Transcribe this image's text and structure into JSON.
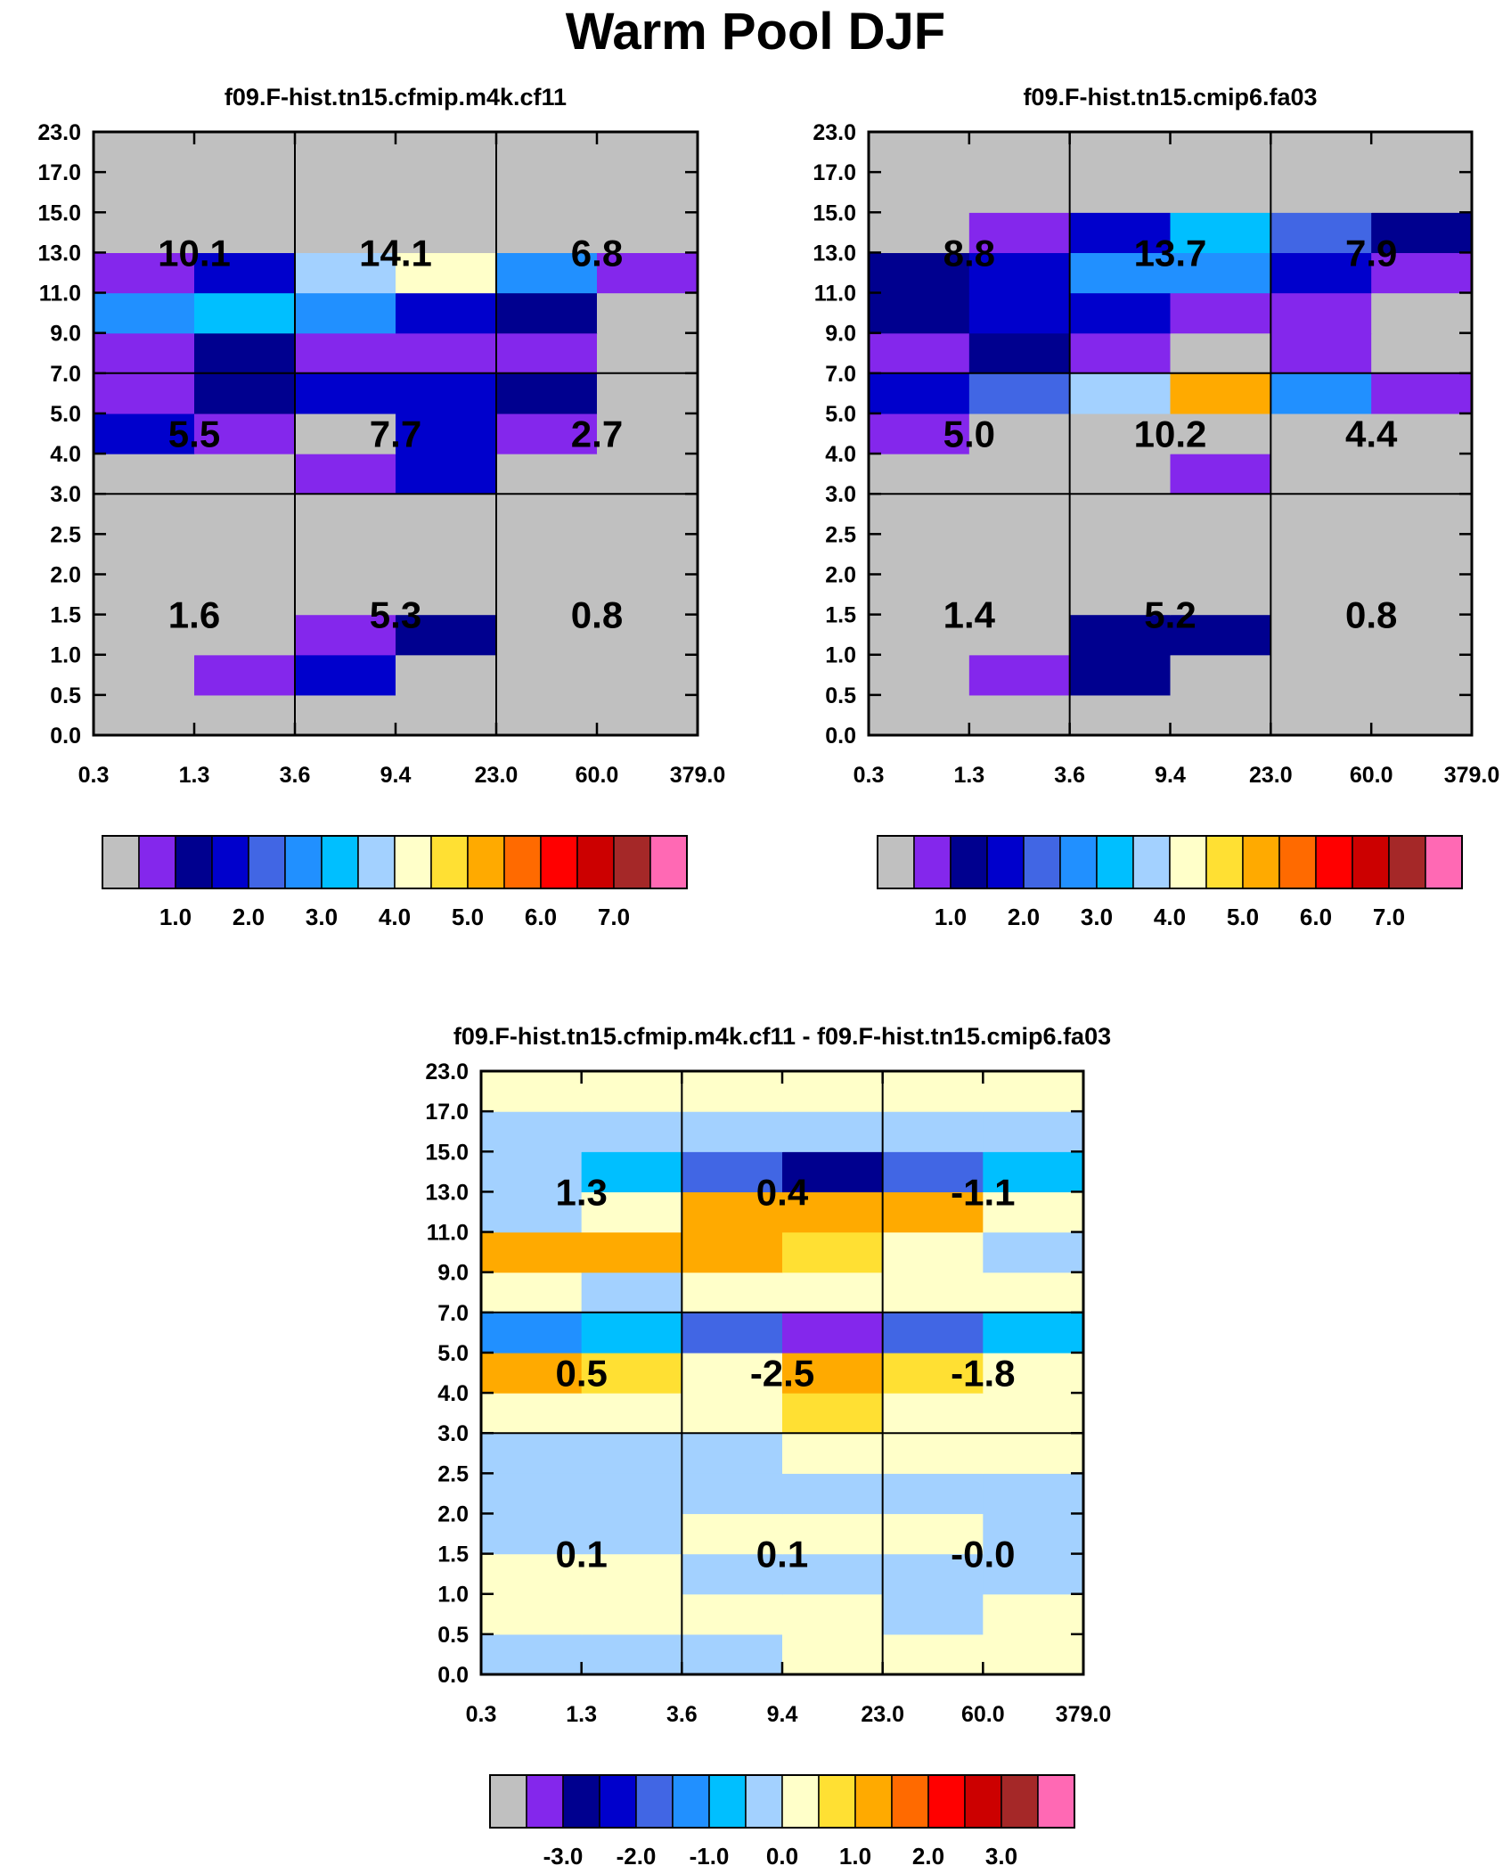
{
  "title": "Warm Pool DJF",
  "colors": {
    "abs": [
      "#c0c0c0",
      "#8427ec",
      "#00008f",
      "#0000cc",
      "#4166e4",
      "#2190ff",
      "#00bfff",
      "#a3d1ff",
      "#ffffc9",
      "#ffe033",
      "#ffaa00",
      "#ff6a00",
      "#ff0000",
      "#cc0000",
      "#a52828",
      "#ff69b4"
    ],
    "diff": [
      "#c0c0c0",
      "#8427ec",
      "#00008f",
      "#0000cc",
      "#4166e4",
      "#2190ff",
      "#00bfff",
      "#a3d1ff",
      "#ffffc9",
      "#ffe033",
      "#ffaa00",
      "#ff6a00",
      "#ff0000",
      "#cc0000",
      "#a52828",
      "#ff69b4"
    ]
  },
  "chart_data": [
    {
      "type": "heatmap",
      "title": "f09.F-hist.tn15.cfmip.m4k.cf11",
      "x_ticks": [
        "0.3",
        "1.3",
        "3.6",
        "9.4",
        "23.0",
        "60.0",
        "379.0"
      ],
      "y_ticks": [
        "0.0",
        "0.5",
        "1.0",
        "1.5",
        "2.0",
        "2.5",
        "3.0",
        "4.0",
        "5.0",
        "7.0",
        "9.0",
        "11.0",
        "13.0",
        "15.0",
        "17.0",
        "23.0"
      ],
      "cells": [
        [
          0,
          0,
          0,
          0,
          0,
          0
        ],
        [
          0,
          1,
          3,
          0,
          0,
          0
        ],
        [
          0,
          0,
          1,
          2,
          0,
          0
        ],
        [
          0,
          0,
          0,
          0,
          0,
          0
        ],
        [
          0,
          0,
          0,
          0,
          0,
          0
        ],
        [
          0,
          0,
          0,
          0,
          0,
          0
        ],
        [
          0,
          0,
          1,
          3,
          0,
          0
        ],
        [
          3,
          1,
          0,
          3,
          1,
          0
        ],
        [
          1,
          2,
          3,
          3,
          2,
          0
        ],
        [
          1,
          2,
          1,
          1,
          1,
          0
        ],
        [
          5,
          6,
          5,
          3,
          2,
          0
        ],
        [
          1,
          3,
          7,
          8,
          5,
          1
        ],
        [
          0,
          0,
          0,
          0,
          0,
          0
        ],
        [
          0,
          0,
          0,
          0,
          0,
          0
        ],
        [
          0,
          0,
          0,
          0,
          0,
          0
        ]
      ],
      "group_values": [
        [
          "1.6",
          "5.3",
          "0.8"
        ],
        [
          "5.5",
          "7.7",
          "2.7"
        ],
        [
          "10.1",
          "14.1",
          "6.8"
        ]
      ],
      "colorbar": {
        "color_set": "abs",
        "labels": [
          "1.0",
          "2.0",
          "3.0",
          "4.0",
          "5.0",
          "6.0",
          "7.0"
        ]
      }
    },
    {
      "type": "heatmap",
      "title": "f09.F-hist.tn15.cmip6.fa03",
      "x_ticks": [
        "0.3",
        "1.3",
        "3.6",
        "9.4",
        "23.0",
        "60.0",
        "379.0"
      ],
      "y_ticks": [
        "0.0",
        "0.5",
        "1.0",
        "1.5",
        "2.0",
        "2.5",
        "3.0",
        "4.0",
        "5.0",
        "7.0",
        "9.0",
        "11.0",
        "13.0",
        "15.0",
        "17.0",
        "23.0"
      ],
      "cells": [
        [
          0,
          0,
          0,
          0,
          0,
          0
        ],
        [
          0,
          1,
          2,
          0,
          0,
          0
        ],
        [
          0,
          0,
          2,
          2,
          0,
          0
        ],
        [
          0,
          0,
          0,
          0,
          0,
          0
        ],
        [
          0,
          0,
          0,
          0,
          0,
          0
        ],
        [
          0,
          0,
          0,
          0,
          0,
          0
        ],
        [
          0,
          0,
          0,
          1,
          0,
          0
        ],
        [
          1,
          0,
          0,
          0,
          0,
          0
        ],
        [
          3,
          4,
          7,
          10,
          5,
          1
        ],
        [
          1,
          2,
          1,
          0,
          1,
          0
        ],
        [
          2,
          3,
          3,
          1,
          1,
          0
        ],
        [
          2,
          3,
          5,
          5,
          3,
          1
        ],
        [
          0,
          1,
          3,
          6,
          4,
          2
        ],
        [
          0,
          0,
          0,
          0,
          0,
          0
        ],
        [
          0,
          0,
          0,
          0,
          0,
          0
        ]
      ],
      "group_values": [
        [
          "1.4",
          "5.2",
          "0.8"
        ],
        [
          "5.0",
          "10.2",
          "4.4"
        ],
        [
          "8.8",
          "13.7",
          "7.9"
        ]
      ],
      "colorbar": {
        "color_set": "abs",
        "labels": [
          "1.0",
          "2.0",
          "3.0",
          "4.0",
          "5.0",
          "6.0",
          "7.0"
        ]
      }
    },
    {
      "type": "heatmap",
      "title": "f09.F-hist.tn15.cfmip.m4k.cf11 - f09.F-hist.tn15.cmip6.fa03",
      "x_ticks": [
        "0.3",
        "1.3",
        "3.6",
        "9.4",
        "23.0",
        "60.0",
        "379.0"
      ],
      "y_ticks": [
        "0.0",
        "0.5",
        "1.0",
        "1.5",
        "2.0",
        "2.5",
        "3.0",
        "4.0",
        "5.0",
        "7.0",
        "9.0",
        "11.0",
        "13.0",
        "15.0",
        "17.0",
        "23.0"
      ],
      "cells": [
        [
          7,
          7,
          7,
          8,
          8,
          8
        ],
        [
          8,
          8,
          8,
          8,
          7,
          8
        ],
        [
          8,
          8,
          7,
          7,
          7,
          7
        ],
        [
          7,
          7,
          8,
          8,
          8,
          7
        ],
        [
          7,
          7,
          7,
          7,
          7,
          7
        ],
        [
          7,
          7,
          7,
          8,
          8,
          8
        ],
        [
          8,
          8,
          8,
          9,
          8,
          8
        ],
        [
          10,
          9,
          8,
          10,
          9,
          8
        ],
        [
          5,
          6,
          4,
          1,
          4,
          6
        ],
        [
          8,
          7,
          8,
          8,
          8,
          8
        ],
        [
          10,
          10,
          10,
          9,
          8,
          7
        ],
        [
          7,
          8,
          10,
          10,
          10,
          8
        ],
        [
          7,
          6,
          4,
          2,
          4,
          6
        ],
        [
          7,
          7,
          7,
          7,
          7,
          7
        ],
        [
          8,
          8,
          8,
          8,
          8,
          8
        ]
      ],
      "group_values": [
        [
          "0.1",
          "0.1",
          "-0.0"
        ],
        [
          "0.5",
          "-2.5",
          "-1.8"
        ],
        [
          "1.3",
          "0.4",
          "-1.1"
        ]
      ],
      "colorbar": {
        "color_set": "diff",
        "labels": [
          "-3.0",
          "-2.0",
          "-1.0",
          "0.0",
          "1.0",
          "2.0",
          "3.0"
        ]
      }
    }
  ]
}
